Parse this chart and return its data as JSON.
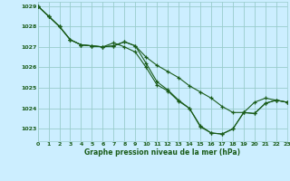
{
  "title": "Graphe pression niveau de la mer (hPa)",
  "bg_color": "#cceeff",
  "grid_color": "#99cccc",
  "line_color": "#1a5c1a",
  "x_min": 0,
  "x_max": 23,
  "y_min": 1022.4,
  "y_max": 1029.2,
  "series": [
    {
      "x": [
        0,
        1,
        2,
        3,
        4,
        5,
        6,
        7,
        8,
        9,
        10,
        11,
        12,
        13,
        14,
        15,
        16,
        17,
        18,
        19,
        20,
        21,
        22,
        23
      ],
      "y": [
        1029.0,
        1028.5,
        1028.0,
        1027.35,
        1027.1,
        1027.05,
        1027.0,
        1027.05,
        1027.25,
        1027.05,
        1026.5,
        1026.1,
        1025.8,
        1025.5,
        1025.1,
        1024.8,
        1024.5,
        1024.1,
        1023.8,
        1023.8,
        1024.3,
        1024.5,
        1024.4,
        1024.3
      ]
    },
    {
      "x": [
        0,
        1,
        2,
        3,
        4,
        5,
        6,
        7,
        8,
        9,
        10,
        11,
        12,
        13,
        14,
        15,
        16,
        17,
        18,
        19,
        20,
        21,
        22,
        23
      ],
      "y": [
        1029.0,
        1028.5,
        1028.0,
        1027.35,
        1027.1,
        1027.05,
        1027.0,
        1027.05,
        1027.25,
        1027.05,
        1026.2,
        1025.3,
        1024.9,
        1024.4,
        1024.0,
        1023.1,
        1022.8,
        1022.75,
        1023.0,
        1023.8,
        1023.75,
        1024.25,
        1024.4,
        1024.3
      ]
    },
    {
      "x": [
        0,
        1,
        2,
        3,
        4,
        5,
        6,
        7,
        8,
        9,
        10,
        11,
        12,
        13,
        14,
        15,
        16,
        17,
        18,
        19,
        20,
        21,
        22,
        23
      ],
      "y": [
        1029.0,
        1028.5,
        1028.0,
        1027.35,
        1027.1,
        1027.05,
        1027.0,
        1027.2,
        1027.0,
        1026.75,
        1026.0,
        1025.15,
        1024.85,
        1024.35,
        1024.0,
        1023.15,
        1022.8,
        1022.75,
        1023.0,
        1023.8,
        1023.75,
        1024.25,
        1024.4,
        1024.3
      ]
    }
  ],
  "yticks": [
    1023,
    1024,
    1025,
    1026,
    1027,
    1028,
    1029
  ],
  "xticks": [
    0,
    1,
    2,
    3,
    4,
    5,
    6,
    7,
    8,
    9,
    10,
    11,
    12,
    13,
    14,
    15,
    16,
    17,
    18,
    19,
    20,
    21,
    22,
    23
  ]
}
